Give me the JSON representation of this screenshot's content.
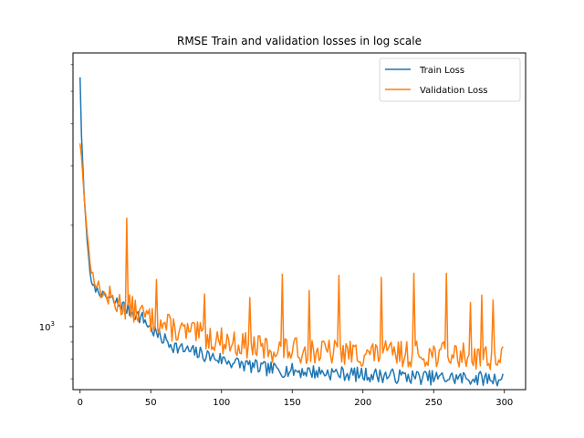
{
  "chart_data": {
    "type": "line",
    "title": "RMSE Train and validation losses in log scale",
    "xlabel": "",
    "ylabel": "",
    "yscale": "log",
    "xlim": [
      -5,
      315
    ],
    "ylim": [
      650,
      6500
    ],
    "x_ticks": [
      0,
      50,
      100,
      150,
      200,
      250,
      300
    ],
    "x_tick_labels": [
      "0",
      "50",
      "100",
      "150",
      "200",
      "250",
      "300"
    ],
    "y_major_tick_labels": [
      {
        "value": 1000,
        "label": "10^3"
      }
    ],
    "y_minor_ticks": [
      700,
      800,
      900,
      2000,
      3000,
      4000,
      5000,
      6000
    ],
    "grid": false,
    "legend": "top-right",
    "series": [
      {
        "name": "Train Loss",
        "color": "#1f77b4",
        "keypoints": [
          [
            0,
            5500
          ],
          [
            1,
            3700
          ],
          [
            3,
            2400
          ],
          [
            5,
            1800
          ],
          [
            8,
            1330
          ],
          [
            15,
            1250
          ],
          [
            25,
            1180
          ],
          [
            35,
            1120
          ],
          [
            45,
            1050
          ],
          [
            55,
            940
          ],
          [
            70,
            860
          ],
          [
            90,
            820
          ],
          [
            110,
            780
          ],
          [
            130,
            750
          ],
          [
            150,
            740
          ],
          [
            175,
            730
          ],
          [
            200,
            720
          ],
          [
            250,
            705
          ],
          [
            299,
            700
          ]
        ],
        "noise_amplitude": 0.05,
        "seed": 7
      },
      {
        "name": "Validation Loss",
        "color": "#ff7f0e",
        "keypoints": [
          [
            0,
            3500
          ],
          [
            1,
            3200
          ],
          [
            3,
            2400
          ],
          [
            5,
            1900
          ],
          [
            8,
            1450
          ],
          [
            15,
            1260
          ],
          [
            25,
            1180
          ],
          [
            35,
            1140
          ],
          [
            50,
            1050
          ],
          [
            70,
            970
          ],
          [
            90,
            930
          ],
          [
            110,
            890
          ],
          [
            130,
            860
          ],
          [
            150,
            850
          ],
          [
            175,
            840
          ],
          [
            200,
            830
          ],
          [
            250,
            830
          ],
          [
            299,
            810
          ]
        ],
        "noise_amplitude": 0.09,
        "seed": 13,
        "spikes": [
          [
            33,
            2100
          ],
          [
            54,
            1380
          ],
          [
            88,
            1250
          ],
          [
            120,
            1220
          ],
          [
            143,
            1430
          ],
          [
            162,
            1280
          ],
          [
            183,
            1420
          ],
          [
            213,
            1400
          ],
          [
            236,
            1440
          ],
          [
            259,
            1440
          ],
          [
            276,
            1180
          ],
          [
            284,
            1240
          ],
          [
            292,
            1200
          ]
        ]
      }
    ]
  }
}
